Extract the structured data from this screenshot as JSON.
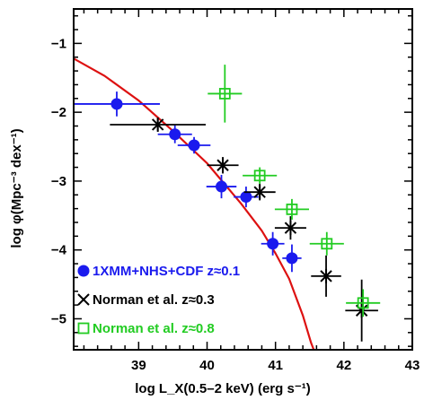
{
  "chart_data": {
    "type": "scatter",
    "title": "",
    "xlabel": "log L_X(0.5–2 keV) (erg s⁻¹)",
    "ylabel": "log φ(Mpc⁻³ dex⁻¹)",
    "xlim": [
      38.05,
      43.0
    ],
    "ylim": [
      -5.45,
      -0.5
    ],
    "x_ticks": [
      "39",
      "40",
      "41",
      "42",
      "43"
    ],
    "y_ticks": [
      "−1",
      "−2",
      "−3",
      "−4",
      "−5"
    ],
    "grid": false,
    "legend_position": "bottom-left",
    "series": [
      {
        "name": "1XMM+NHS+CDF z≈0.1",
        "color": "#1a1aee",
        "marker": "circle",
        "points": [
          {
            "x": 38.68,
            "y": -1.88,
            "xerr": [
              0.62,
              0.63
            ],
            "yerr": [
              0.18,
              0.18
            ]
          },
          {
            "x": 39.53,
            "y": -2.32,
            "xerr": [
              0.25,
              0.25
            ],
            "yerr": [
              0.13,
              0.13
            ]
          },
          {
            "x": 39.81,
            "y": -2.48,
            "xerr": [
              0.24,
              0.24
            ],
            "yerr": [
              0.12,
              0.12
            ]
          },
          {
            "x": 40.21,
            "y": -3.08,
            "xerr": [
              0.22,
              0.22
            ],
            "yerr": [
              0.17,
              0.17
            ]
          },
          {
            "x": 40.57,
            "y": -3.23,
            "xerr": [
              0.18,
              0.18
            ],
            "yerr": [
              0.15,
              0.15
            ]
          },
          {
            "x": 40.96,
            "y": -3.91,
            "xerr": [
              0.17,
              0.17
            ],
            "yerr": [
              0.17,
              0.17
            ]
          },
          {
            "x": 41.24,
            "y": -4.12,
            "xerr": [
              0.14,
              0.14
            ],
            "yerr": [
              0.2,
              0.2
            ]
          }
        ]
      },
      {
        "name": "Norman et al. z≈0.3",
        "color": "#000000",
        "marker": "x",
        "points": [
          {
            "x": 39.28,
            "y": -2.18,
            "xerr": [
              0.7,
              0.7
            ],
            "yerr": [
              0.09,
              0.09
            ]
          },
          {
            "x": 40.23,
            "y": -2.77,
            "xerr": [
              0.23,
              0.23
            ],
            "yerr": [
              0.12,
              0.12
            ]
          },
          {
            "x": 40.77,
            "y": -3.16,
            "xerr": [
              0.23,
              0.23
            ],
            "yerr": [
              0.12,
              0.12
            ]
          },
          {
            "x": 41.22,
            "y": -3.68,
            "xerr": [
              0.23,
              0.23
            ],
            "yerr": [
              0.17,
              0.17
            ]
          },
          {
            "x": 41.74,
            "y": -4.38,
            "xerr": [
              0.22,
              0.22
            ],
            "yerr": [
              0.3,
              0.3
            ]
          },
          {
            "x": 42.26,
            "y": -4.88,
            "xerr": [
              0.24,
              0.24
            ],
            "yerr": [
              0.45,
              0.45
            ]
          }
        ]
      },
      {
        "name": "Norman et al. z≈0.8",
        "color": "#22cc22",
        "marker": "square",
        "points": [
          {
            "x": 40.26,
            "y": -1.73,
            "xerr": [
              0.25,
              0.25
            ],
            "yerr": [
              0.42,
              0.42
            ]
          },
          {
            "x": 40.77,
            "y": -2.92,
            "xerr": [
              0.25,
              0.25
            ],
            "yerr": [
              0.12,
              0.12
            ]
          },
          {
            "x": 41.24,
            "y": -3.41,
            "xerr": [
              0.25,
              0.25
            ],
            "yerr": [
              0.15,
              0.15
            ]
          },
          {
            "x": 41.75,
            "y": -3.91,
            "xerr": [
              0.25,
              0.25
            ],
            "yerr": [
              0.17,
              0.17
            ]
          },
          {
            "x": 42.28,
            "y": -4.77,
            "xerr": [
              0.25,
              0.25
            ],
            "yerr": [
              0.2,
              0.2
            ]
          }
        ]
      }
    ],
    "model_curve": {
      "color": "#dd1111",
      "points": [
        [
          38.05,
          -1.22
        ],
        [
          38.5,
          -1.47
        ],
        [
          39.0,
          -1.83
        ],
        [
          39.5,
          -2.27
        ],
        [
          40.0,
          -2.74
        ],
        [
          40.5,
          -3.33
        ],
        [
          40.8,
          -3.72
        ],
        [
          41.0,
          -4.05
        ],
        [
          41.2,
          -4.42
        ],
        [
          41.4,
          -4.95
        ],
        [
          41.52,
          -5.35
        ],
        [
          41.56,
          -5.45
        ]
      ]
    },
    "legend": [
      {
        "label": "1XMM+NHS+CDF z≈0.1",
        "color": "#1a1aee",
        "marker": "circle"
      },
      {
        "label": "Norman et al. z≈0.3",
        "color": "#000000",
        "marker": "x"
      },
      {
        "label": "Norman et al. z≈0.8",
        "color": "#22cc22",
        "marker": "square"
      }
    ]
  }
}
